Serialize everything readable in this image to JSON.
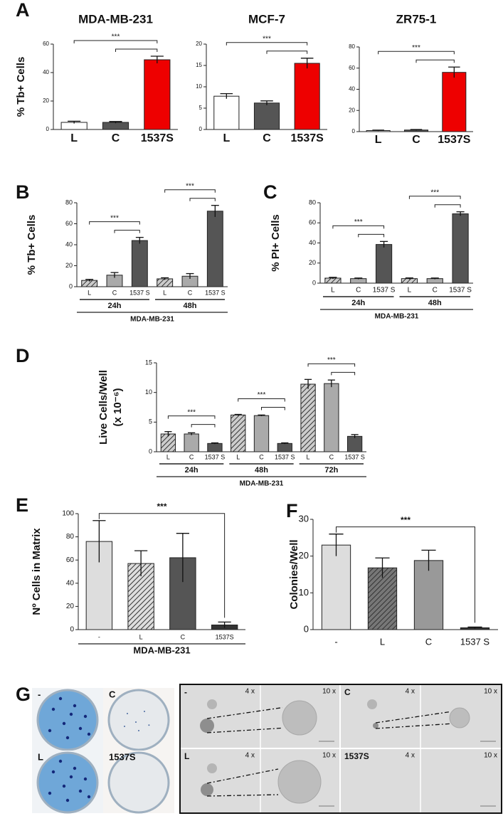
{
  "chart_data": [
    {
      "type": "bar",
      "panel": "A",
      "title": "MDA-MB-231",
      "ylabel": "% Tb+ Cells",
      "categories": [
        "L",
        "C",
        "1537S"
      ],
      "values": [
        5,
        5,
        49
      ],
      "errors": [
        0.8,
        0.6,
        2.5
      ],
      "colors": [
        "#ffffff",
        "#555555",
        "#ee0000"
      ],
      "hatch": [
        false,
        false,
        false
      ],
      "ylim": [
        0,
        60
      ],
      "yticks": [
        0,
        20,
        40,
        60
      ],
      "annotations": [
        "***"
      ]
    },
    {
      "type": "bar",
      "title": "MCF-7",
      "categories": [
        "L",
        "C",
        "1537S"
      ],
      "values": [
        7.8,
        6.2,
        15.5
      ],
      "errors": [
        0.6,
        0.5,
        1.2
      ],
      "colors": [
        "#ffffff",
        "#555555",
        "#ee0000"
      ],
      "hatch": [
        false,
        false,
        false
      ],
      "ylim": [
        0,
        20
      ],
      "yticks": [
        0,
        5,
        10,
        15,
        20
      ],
      "annotations": [
        "***"
      ]
    },
    {
      "type": "bar",
      "title": "ZR75-1",
      "categories": [
        "L",
        "C",
        "1537S"
      ],
      "values": [
        1,
        1.5,
        56
      ],
      "errors": [
        0.4,
        0.5,
        5
      ],
      "colors": [
        "#ffffff",
        "#555555",
        "#ee0000"
      ],
      "hatch": [
        false,
        false,
        false
      ],
      "ylim": [
        0,
        80
      ],
      "yticks": [
        0,
        20,
        40,
        60,
        80
      ],
      "annotations": [
        "***"
      ]
    },
    {
      "type": "bar",
      "panel": "B",
      "ylabel": "% Tb+ Cells",
      "categories": [
        "L",
        "C",
        "1537 S",
        "L",
        "C",
        "1537 S"
      ],
      "groups": [
        "24h",
        "48h"
      ],
      "xlabel": "MDA-MB-231",
      "values": [
        6,
        11,
        44,
        7.5,
        10,
        72
      ],
      "errors": [
        1,
        2.5,
        3,
        1,
        2.5,
        5.5
      ],
      "colors": [
        "#cccccc",
        "#aaaaaa",
        "#555555",
        "#cccccc",
        "#aaaaaa",
        "#555555"
      ],
      "hatch": [
        true,
        false,
        false,
        true,
        false,
        false
      ],
      "ylim": [
        0,
        80
      ],
      "yticks": [
        0,
        20,
        40,
        60,
        80
      ],
      "annotations": [
        "***",
        "***"
      ]
    },
    {
      "type": "bar",
      "panel": "C",
      "ylabel": "% PI+ Cells",
      "categories": [
        "L",
        "C",
        "1537 S",
        "L",
        "C",
        "1537 S"
      ],
      "groups": [
        "24h",
        "48h"
      ],
      "xlabel": "MDA-MB-231",
      "values": [
        5,
        4.5,
        38.5,
        4.5,
        4.5,
        69
      ],
      "errors": [
        0.8,
        0.6,
        3,
        0.7,
        0.6,
        2
      ],
      "colors": [
        "#cccccc",
        "#aaaaaa",
        "#555555",
        "#cccccc",
        "#aaaaaa",
        "#555555"
      ],
      "hatch": [
        true,
        false,
        false,
        true,
        false,
        false
      ],
      "ylim": [
        0,
        80
      ],
      "yticks": [
        0,
        20,
        40,
        60,
        80
      ],
      "annotations": [
        "***",
        "***"
      ]
    },
    {
      "type": "bar",
      "panel": "D",
      "ylabel": "Live Cells/Well",
      "ylabel_unit": "(x 10⁻⁶)",
      "categories": [
        "L",
        "C",
        "1537 S",
        "L",
        "C",
        "1537 S",
        "L",
        "C",
        "1537 S"
      ],
      "groups": [
        "24h",
        "48h",
        "72h"
      ],
      "xlabel": "MDA-MB-231",
      "values": [
        3,
        3,
        1.4,
        6.2,
        6.1,
        1.4,
        11.4,
        11.5,
        2.6
      ],
      "errors": [
        0.4,
        0.2,
        0.1,
        0.1,
        0.1,
        0.1,
        0.8,
        0.6,
        0.3
      ],
      "colors": [
        "#cccccc",
        "#aaaaaa",
        "#555555",
        "#cccccc",
        "#aaaaaa",
        "#555555",
        "#cccccc",
        "#aaaaaa",
        "#555555"
      ],
      "hatch": [
        true,
        false,
        false,
        true,
        false,
        false,
        true,
        false,
        false
      ],
      "ylim": [
        0,
        15
      ],
      "yticks": [
        0,
        5,
        10,
        15
      ],
      "annotations": [
        "***",
        "***",
        "***"
      ]
    },
    {
      "type": "bar",
      "panel": "E",
      "ylabel": "Nº Cells in Matrix",
      "categories": [
        "-",
        "L",
        "C",
        "1537S"
      ],
      "xlabel": "MDA-MB-231",
      "values": [
        76,
        57,
        62,
        4
      ],
      "errors": [
        18,
        11,
        21,
        2.5
      ],
      "colors": [
        "#dddddd",
        "#dddddd",
        "#555555",
        "#333333"
      ],
      "hatch": [
        false,
        true,
        false,
        false
      ],
      "ylim": [
        0,
        100
      ],
      "yticks": [
        0,
        20,
        40,
        60,
        80,
        100
      ],
      "annotations": [
        "***"
      ]
    },
    {
      "type": "bar",
      "panel": "F",
      "ylabel": "Colonies/Well",
      "categories": [
        "-",
        "L",
        "C",
        "1537 S"
      ],
      "values": [
        23,
        16.8,
        18.8,
        0.5
      ],
      "errors": [
        3,
        2.7,
        2.8,
        0.2
      ],
      "colors": [
        "#dddddd",
        "#777777",
        "#999999",
        "#333333"
      ],
      "hatch": [
        false,
        true,
        false,
        false
      ],
      "ylim": [
        0,
        30
      ],
      "yticks": [
        0,
        10,
        20,
        30
      ],
      "annotations": [
        "***"
      ]
    }
  ],
  "image_panel": {
    "panel": "G",
    "dish_labels": [
      "-",
      "C",
      "L",
      "1537S"
    ],
    "micro_labels": [
      "-",
      "C",
      "L",
      "1537S"
    ],
    "magnifications": [
      "4 x",
      "10 x"
    ]
  }
}
